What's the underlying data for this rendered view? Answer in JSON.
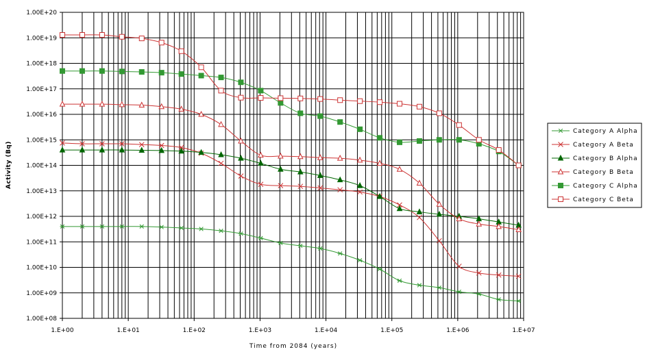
{
  "chart_data": {
    "type": "line",
    "title": "",
    "xlabel": "Time from 2084 (years)",
    "ylabel": "Activity (Bq)",
    "x_scale": "log",
    "y_scale": "log",
    "xlim": [
      1,
      10000000
    ],
    "ylim": [
      100000000,
      100000000000000000000
    ],
    "grid": true,
    "legend_position": "right",
    "x_tick_labels": [
      "1.E+00",
      "1.E+01",
      "1.E+02",
      "1.E+03",
      "1.E+04",
      "1.E+05",
      "1.E+06",
      "1.E+07"
    ],
    "y_tick_labels": [
      "1.00E+08",
      "1.00E+09",
      "1.00E+10",
      "1.00E+11",
      "1.00E+12",
      "1.00E+13",
      "1.00E+14",
      "1.00E+15",
      "1.00E+16",
      "1.00E+17",
      "1.00E+18",
      "1.00E+19",
      "1.00E+20"
    ],
    "x": [
      1,
      2,
      4,
      8,
      16,
      32,
      64,
      128,
      256,
      512,
      1024,
      2048,
      4096,
      8192,
      16384,
      32768,
      65536,
      131072,
      262144,
      524288,
      1048576,
      2097152,
      4194304,
      8388608
    ],
    "series": [
      {
        "name": "Category A  Alpha",
        "color": "#339933",
        "marker": "star",
        "values": [
          400000000000.0,
          400000000000.0,
          400000000000.0,
          400000000000.0,
          400000000000.0,
          380000000000.0,
          350000000000.0,
          320000000000.0,
          270000000000.0,
          210000000000.0,
          140000000000.0,
          90000000000.0,
          70000000000.0,
          55000000000.0,
          35000000000.0,
          19000000000.0,
          8500000000.0,
          3000000000.0,
          2000000000.0,
          1600000000.0,
          1100000000.0,
          900000000.0,
          550000000.0,
          480000000.0
        ]
      },
      {
        "name": "Category A  Beta",
        "color": "#cc3333",
        "marker": "x",
        "values": [
          750000000000000.0,
          700000000000000.0,
          700000000000000.0,
          700000000000000.0,
          650000000000000.0,
          600000000000000.0,
          500000000000000.0,
          300000000000000.0,
          120000000000000.0,
          38000000000000.0,
          18000000000000.0,
          16000000000000.0,
          15000000000000.0,
          13000000000000.0,
          11000000000000.0,
          9000000000000.0,
          6000000000000.0,
          2800000000000.0,
          900000000000.0,
          110000000000.0,
          11000000000.0,
          6000000000.0,
          5000000000.0,
          4500000000.0
        ]
      },
      {
        "name": "Category B  Alpha",
        "color": "#006600",
        "marker": "triangle-filled",
        "values": [
          400000000000000.0,
          400000000000000.0,
          400000000000000.0,
          400000000000000.0,
          390000000000000.0,
          380000000000000.0,
          360000000000000.0,
          320000000000000.0,
          260000000000000.0,
          190000000000000.0,
          120000000000000.0,
          70000000000000.0,
          55000000000000.0,
          40000000000000.0,
          27000000000000.0,
          16000000000000.0,
          6000000000000.0,
          2000000000000.0,
          1500000000000.0,
          1200000000000.0,
          1000000000000.0,
          800000000000.0,
          600000000000.0,
          450000000000.0
        ]
      },
      {
        "name": "Category B  Beta",
        "color": "#cc3333",
        "marker": "triangle-open",
        "values": [
          2.5e+16,
          2.5e+16,
          2.5e+16,
          2.4e+16,
          2.3e+16,
          2e+16,
          1.6e+16,
          1e+16,
          4000000000000000.0,
          900000000000000.0,
          250000000000000.0,
          230000000000000.0,
          220000000000000.0,
          200000000000000.0,
          190000000000000.0,
          160000000000000.0,
          120000000000000.0,
          70000000000000.0,
          20000000000000.0,
          3000000000000.0,
          800000000000.0,
          500000000000.0,
          400000000000.0,
          300000000000.0
        ]
      },
      {
        "name": "Category C  Alpha",
        "color": "#339933",
        "marker": "square-filled",
        "values": [
          5e+17,
          5e+17,
          5e+17,
          4.8e+17,
          4.6e+17,
          4.3e+17,
          3.8e+17,
          3.3e+17,
          2.8e+17,
          1.8e+17,
          8.5e+16,
          2.8e+16,
          1.1e+16,
          8500000000000000.0,
          5000000000000000.0,
          2600000000000000.0,
          1200000000000000.0,
          800000000000000.0,
          900000000000000.0,
          1000000000000000.0,
          1000000000000000.0,
          700000000000000.0,
          350000000000000.0,
          100000000000000.0
        ]
      },
      {
        "name": "Category C  Beta",
        "color": "#cc3333",
        "marker": "square-open",
        "values": [
          1.3e+19,
          1.3e+19,
          1.3e+19,
          1.1e+19,
          9.5e+18,
          6.5e+18,
          3e+18,
          7e+17,
          8.5e+16,
          4.5e+16,
          4.4e+16,
          4.3e+16,
          4.2e+16,
          4e+16,
          3.6e+16,
          3.3e+16,
          3e+16,
          2.6e+16,
          2e+16,
          1.1e+16,
          3800000000000000.0,
          1000000000000000.0,
          400000000000000.0,
          100000000000000.0
        ]
      }
    ]
  }
}
